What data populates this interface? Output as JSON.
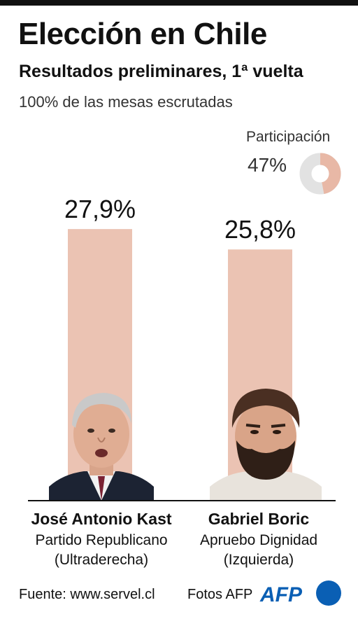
{
  "header": {
    "title": "Elección en Chile",
    "subtitle": "Resultados preliminares, 1ª vuelta",
    "counted": "100% de las mesas escrutadas"
  },
  "participation": {
    "label": "Participación",
    "value_text": "47%",
    "value": 47,
    "color": "#e8b8a6",
    "track_color": "#e2e2e2"
  },
  "chart_data": {
    "type": "bar",
    "categories": [
      "José Antonio Kast",
      "Gabriel Boric"
    ],
    "values": [
      27.9,
      25.8
    ],
    "value_labels": [
      "27,9%",
      "25,8%"
    ],
    "bar_color": "#ebc3b3",
    "ylim": [
      0,
      30
    ],
    "grid": false
  },
  "candidates": [
    {
      "name": "José Antonio Kast",
      "party": "Partido Republicano",
      "lean": "(Ultraderecha)"
    },
    {
      "name": "Gabriel Boric",
      "party": "Apruebo Dignidad",
      "lean": "(Izquierda)"
    }
  ],
  "footer": {
    "source": "Fuente: www.servel.cl",
    "photos": "Fotos AFP",
    "logo_text": "AFP",
    "logo_color": "#0a5fb4"
  }
}
